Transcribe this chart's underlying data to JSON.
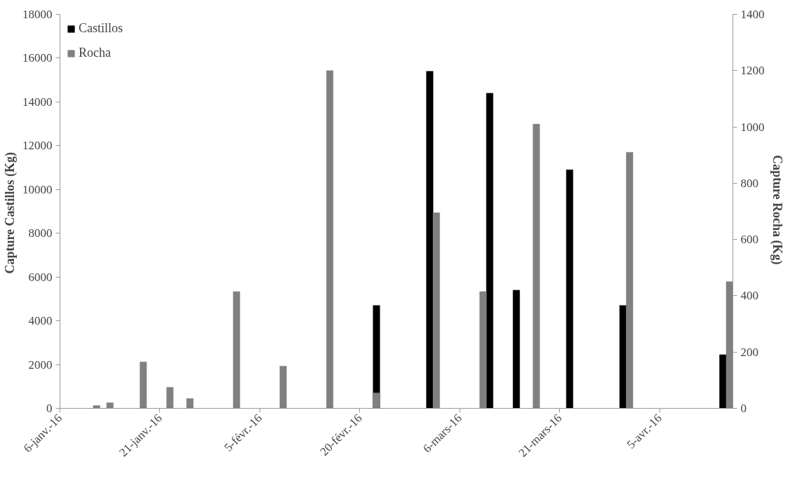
{
  "chart_data": {
    "type": "bar",
    "xlim": [
      "2016-01-06",
      "2016-04-16"
    ],
    "xticks": [
      {
        "value": "2016-01-06",
        "label": "6-janv.-16"
      },
      {
        "value": "2016-01-21",
        "label": "21-janv.-16"
      },
      {
        "value": "2016-02-05",
        "label": "5-févr.-16"
      },
      {
        "value": "2016-02-20",
        "label": "20-févr.-16"
      },
      {
        "value": "2016-03-06",
        "label": "6-mars-16"
      },
      {
        "value": "2016-03-21",
        "label": "21-mars-16"
      },
      {
        "value": "2016-04-05",
        "label": "5-avr.-16"
      }
    ],
    "ylim": [
      0,
      18000
    ],
    "yticks": [
      0,
      2000,
      4000,
      6000,
      8000,
      10000,
      12000,
      14000,
      16000,
      18000
    ],
    "y2lim": [
      0,
      1400
    ],
    "y2ticks": [
      0,
      200,
      400,
      600,
      800,
      1000,
      1200,
      1400
    ],
    "ylabel": "Capture  Castillos (Kg)",
    "y2label": "Capture  Rocha (Kg)",
    "legend": "top left",
    "grid": false,
    "series": [
      {
        "name": "Castillos",
        "color": "#000000",
        "x": [
          "2016-02-22",
          "2016-03-01",
          "2016-03-10",
          "2016-03-14",
          "2016-03-22",
          "2016-03-30",
          "2016-04-14"
        ],
        "values": [
          4700,
          15400,
          14400,
          5400,
          10900,
          4700,
          2450
        ]
      },
      {
        "name": "Rocha",
        "color": "#808080",
        "axis": "y2",
        "x": [
          "2016-01-11",
          "2016-01-13",
          "2016-01-18",
          "2016-01-22",
          "2016-01-25",
          "2016-02-01",
          "2016-02-08",
          "2016-02-15",
          "2016-02-22",
          "2016-03-02",
          "2016-03-09",
          "2016-03-17",
          "2016-03-31",
          "2016-04-15"
        ],
        "values": [
          10,
          20,
          165,
          75,
          35,
          415,
          150,
          1200,
          55,
          695,
          415,
          1010,
          910,
          450
        ]
      }
    ]
  }
}
